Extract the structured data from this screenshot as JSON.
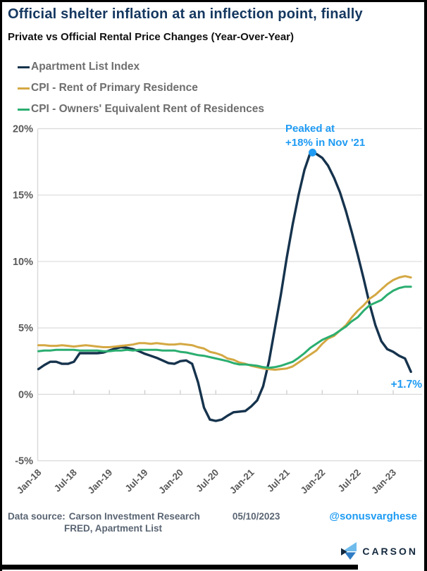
{
  "header": {
    "title": "Official shelter inflation at an inflection point, finally",
    "subtitle": "Private vs Official Rental Price Changes (Year-Over-Year)"
  },
  "legend": [
    {
      "label": "Apartment List Index",
      "color": "#16334D"
    },
    {
      "label": "CPI - Rent of Primary Residence",
      "color": "#D4A843"
    },
    {
      "label": "CPI - Owners' Equivalent Rent of Residences",
      "color": "#2BAE70"
    }
  ],
  "annotations": {
    "peak_line1": "Peaked at",
    "peak_line2": "+18% in Nov '21",
    "end_label": "+1.7%",
    "annotation_color": "#1E9BF3"
  },
  "chart_data": {
    "type": "line",
    "title": "Official shelter inflation at an inflection point, finally",
    "subtitle": "Private vs Official Rental Price Changes (Year-Over-Year)",
    "grid": true,
    "legend_position": "top-left",
    "ylim": [
      -5,
      20
    ],
    "y_ticks": [
      20,
      15,
      10,
      5,
      0,
      -5
    ],
    "y_tick_suffix": "%",
    "x_tick_labels": [
      "Jan-18",
      "Jul-18",
      "Jan-19",
      "Jul-19",
      "Jan-20",
      "Jul-20",
      "Jan-21",
      "Jul-21",
      "Jan-22",
      "Jul-22",
      "Jan-23"
    ],
    "x_tick_month_indexes": [
      0,
      6,
      12,
      18,
      24,
      30,
      36,
      42,
      48,
      54,
      60
    ],
    "categories": [
      "Jan-18",
      "Feb-18",
      "Mar-18",
      "Apr-18",
      "May-18",
      "Jun-18",
      "Jul-18",
      "Aug-18",
      "Sep-18",
      "Oct-18",
      "Nov-18",
      "Dec-18",
      "Jan-19",
      "Feb-19",
      "Mar-19",
      "Apr-19",
      "May-19",
      "Jun-19",
      "Jul-19",
      "Aug-19",
      "Sep-19",
      "Oct-19",
      "Nov-19",
      "Dec-19",
      "Jan-20",
      "Feb-20",
      "Mar-20",
      "Apr-20",
      "May-20",
      "Jun-20",
      "Jul-20",
      "Aug-20",
      "Sep-20",
      "Oct-20",
      "Nov-20",
      "Dec-20",
      "Jan-21",
      "Feb-21",
      "Mar-21",
      "Apr-21",
      "May-21",
      "Jun-21",
      "Jul-21",
      "Aug-21",
      "Sep-21",
      "Oct-21",
      "Nov-21",
      "Dec-21",
      "Jan-22",
      "Feb-22",
      "Mar-22",
      "Apr-22",
      "May-22",
      "Jun-22",
      "Jul-22",
      "Aug-22",
      "Sep-22",
      "Oct-22",
      "Nov-22",
      "Dec-22",
      "Jan-23",
      "Feb-23",
      "Mar-23",
      "Apr-23"
    ],
    "series": [
      {
        "name": "Apartment List Index",
        "color": "#16334D",
        "width": 3.4,
        "values": [
          1.9,
          2.2,
          2.45,
          2.45,
          2.3,
          2.3,
          2.45,
          3.1,
          3.1,
          3.1,
          3.1,
          3.15,
          3.3,
          3.45,
          3.55,
          3.5,
          3.4,
          3.25,
          3.05,
          2.9,
          2.75,
          2.55,
          2.35,
          2.3,
          2.5,
          2.55,
          2.3,
          0.9,
          -1.0,
          -1.9,
          -2.0,
          -1.9,
          -1.6,
          -1.35,
          -1.3,
          -1.25,
          -0.9,
          -0.45,
          0.6,
          2.5,
          5.0,
          7.5,
          10.3,
          12.8,
          15.0,
          16.9,
          18.2,
          18.1,
          17.8,
          17.2,
          16.3,
          15.2,
          13.8,
          12.2,
          10.5,
          8.7,
          6.8,
          5.2,
          4.0,
          3.4,
          3.2,
          2.9,
          2.7,
          1.7
        ]
      },
      {
        "name": "CPI - Rent of Primary Residence",
        "color": "#D4A843",
        "width": 3,
        "values": [
          3.7,
          3.7,
          3.65,
          3.65,
          3.7,
          3.65,
          3.6,
          3.65,
          3.7,
          3.65,
          3.6,
          3.55,
          3.55,
          3.6,
          3.65,
          3.7,
          3.75,
          3.85,
          3.85,
          3.8,
          3.85,
          3.8,
          3.75,
          3.75,
          3.8,
          3.75,
          3.7,
          3.55,
          3.45,
          3.2,
          3.1,
          2.95,
          2.7,
          2.6,
          2.4,
          2.3,
          2.15,
          2.05,
          1.95,
          1.9,
          1.85,
          1.9,
          1.95,
          2.1,
          2.4,
          2.7,
          3.0,
          3.3,
          3.8,
          4.2,
          4.4,
          4.8,
          5.2,
          5.8,
          6.3,
          6.7,
          7.2,
          7.5,
          7.9,
          8.3,
          8.6,
          8.8,
          8.9,
          8.8
        ]
      },
      {
        "name": "CPI - Owners' Equivalent Rent of Residences",
        "color": "#2BAE70",
        "width": 3,
        "values": [
          3.25,
          3.3,
          3.3,
          3.35,
          3.35,
          3.35,
          3.35,
          3.3,
          3.3,
          3.3,
          3.3,
          3.25,
          3.25,
          3.3,
          3.3,
          3.35,
          3.3,
          3.35,
          3.35,
          3.35,
          3.35,
          3.3,
          3.3,
          3.3,
          3.2,
          3.15,
          3.05,
          2.95,
          2.9,
          2.8,
          2.7,
          2.6,
          2.5,
          2.35,
          2.25,
          2.25,
          2.2,
          2.15,
          2.05,
          2.0,
          2.05,
          2.15,
          2.3,
          2.45,
          2.75,
          3.1,
          3.5,
          3.8,
          4.1,
          4.3,
          4.5,
          4.8,
          5.1,
          5.5,
          5.8,
          6.3,
          6.7,
          6.9,
          7.1,
          7.5,
          7.8,
          8.0,
          8.1,
          8.1
        ]
      }
    ],
    "peak_marker": {
      "month_index": 46,
      "value": 18.2,
      "label": "Peaked at +18% in Nov '21",
      "color": "#1E9BF3"
    },
    "last_value_label": "+1.7%"
  },
  "footer": {
    "data_source_label": "Data source:",
    "source_line1": "Carson Investment Research",
    "source_date": "05/10/2023",
    "source_line2": "FRED, Apartment List",
    "handle": "@sonusvarghese",
    "brand": "CARSON"
  },
  "colors": {
    "title": "#14375F",
    "grid": "#D9D9D9",
    "axis_labels": "#595959",
    "footer_text": "#5A6573",
    "annotation_blue": "#1E9BF3",
    "logo_light_blue": "#6FBCEC",
    "logo_mid_blue": "#2E7CC4",
    "logo_navy": "#14293E"
  }
}
